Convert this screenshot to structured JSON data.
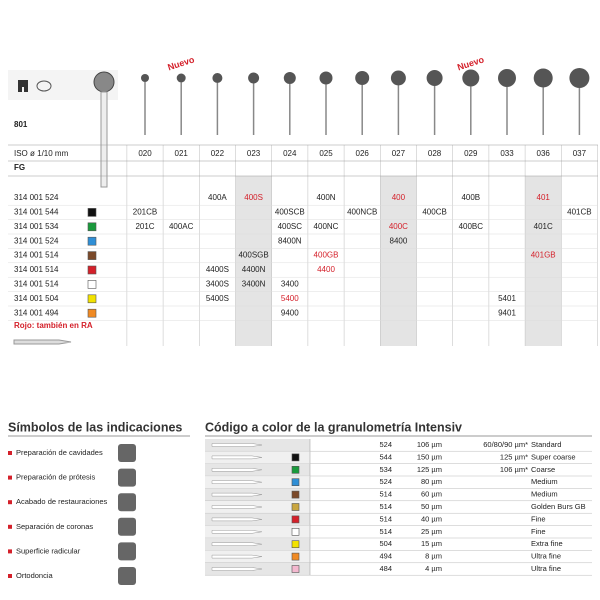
{
  "product": "801",
  "iso_label": "ISO ø 1/10 mm",
  "shank": "FG",
  "nuevo": [
    "Nuevo",
    "Nuevo"
  ],
  "sizes": [
    "020",
    "021",
    "022",
    "023",
    "024",
    "025",
    "026",
    "027",
    "028",
    "029",
    "033",
    "036",
    "037"
  ],
  "rows": [
    {
      "ref": "314 001 524",
      "cells": [
        null,
        null,
        "400A",
        "400S",
        null,
        "400N",
        null,
        "400",
        null,
        "400B",
        null,
        "401",
        null
      ]
    },
    {
      "ref": "314 001 544",
      "cells": [
        "201CB",
        null,
        null,
        null,
        "400SCB",
        null,
        "400NCB",
        null,
        "400CB",
        null,
        null,
        null,
        "401CB"
      ]
    },
    {
      "ref": "314 001 534",
      "cells": [
        "201C",
        "400AC",
        null,
        null,
        "400SC",
        "400NC",
        null,
        "400C",
        null,
        "400BC",
        null,
        "401C",
        null
      ]
    },
    {
      "ref": "314 001 524",
      "cells": [
        null,
        null,
        null,
        null,
        "8400N",
        null,
        null,
        "8400",
        null,
        null,
        null,
        null,
        null
      ]
    },
    {
      "ref": "314 001 514",
      "cells": [
        null,
        null,
        null,
        "400SGB",
        null,
        "400GB",
        null,
        null,
        null,
        null,
        null,
        "401GB",
        null
      ]
    },
    {
      "ref": "314 001 514",
      "cells": [
        null,
        null,
        "4400S",
        "4400N",
        null,
        "4400",
        null,
        null,
        null,
        null,
        null,
        null,
        null
      ]
    },
    {
      "ref": "314 001 514",
      "cells": [
        null,
        null,
        "3400S",
        "3400N",
        "3400",
        null,
        null,
        null,
        null,
        null,
        null,
        null,
        null
      ]
    },
    {
      "ref": "314 001 504",
      "cells": [
        null,
        null,
        "5400S",
        null,
        "5400",
        null,
        null,
        null,
        null,
        null,
        "5401",
        null,
        null
      ]
    },
    {
      "ref": "314 001 494",
      "cells": [
        null,
        null,
        null,
        null,
        "9400",
        null,
        null,
        null,
        null,
        null,
        "9401",
        null,
        null
      ]
    }
  ],
  "note": "Rojo: también en RA",
  "indications": {
    "title": "Símbolos de las indicaciones",
    "items": [
      "Preparación de cavidades",
      "Preparación de prótesis",
      "Acabado de restauraciones",
      "Separación de coronas",
      "Superficie radicular",
      "Ortodoncia"
    ]
  },
  "granulometry": {
    "title": "Código a color de la granulometría Intensiv",
    "rows": [
      [
        "524",
        "106 µm",
        "60/80/90 µm*",
        "Standard"
      ],
      [
        "544",
        "150 µm",
        "125 µm*",
        "Super coarse"
      ],
      [
        "534",
        "125 µm",
        "106 µm*",
        "Coarse"
      ],
      [
        "524",
        "80 µm",
        null,
        "Medium"
      ],
      [
        "514",
        "60 µm",
        null,
        "Medium"
      ],
      [
        "514",
        "50 µm",
        null,
        "Golden Burs GB"
      ],
      [
        "514",
        "40 µm",
        null,
        "Fine"
      ],
      [
        "514",
        "25 µm",
        null,
        "Fine"
      ],
      [
        "504",
        "15 µm",
        null,
        "Extra fine"
      ],
      [
        "494",
        "8 µm",
        null,
        "Ultra fine"
      ],
      [
        "484",
        "4 µm",
        null,
        "Ultra fine"
      ]
    ]
  }
}
